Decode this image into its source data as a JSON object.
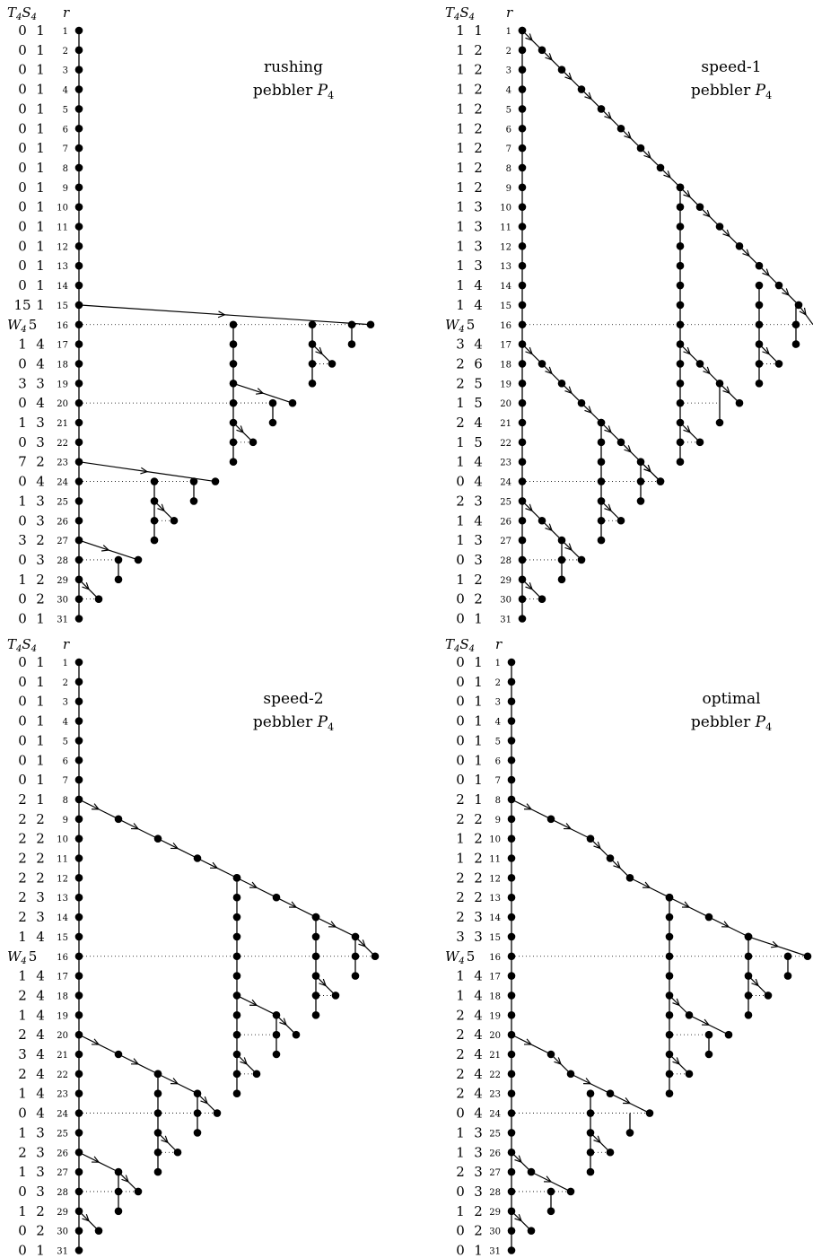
{
  "header": {
    "T": "T",
    "S": "S",
    "sub": "4",
    "r": "r"
  },
  "w_label": "W",
  "panels": [
    {
      "title_line1": "rushing",
      "title_line2": "pebbler",
      "P": "P",
      "P_sub": "4",
      "rows": [
        {
          "r": "1",
          "T": "0",
          "S": "1"
        },
        {
          "r": "2",
          "T": "0",
          "S": "1"
        },
        {
          "r": "3",
          "T": "0",
          "S": "1"
        },
        {
          "r": "4",
          "T": "0",
          "S": "1"
        },
        {
          "r": "5",
          "T": "0",
          "S": "1"
        },
        {
          "r": "6",
          "T": "0",
          "S": "1"
        },
        {
          "r": "7",
          "T": "0",
          "S": "1"
        },
        {
          "r": "8",
          "T": "0",
          "S": "1"
        },
        {
          "r": "9",
          "T": "0",
          "S": "1"
        },
        {
          "r": "10",
          "T": "0",
          "S": "1"
        },
        {
          "r": "11",
          "T": "0",
          "S": "1"
        },
        {
          "r": "12",
          "T": "0",
          "S": "1"
        },
        {
          "r": "13",
          "T": "0",
          "S": "1"
        },
        {
          "r": "14",
          "T": "0",
          "S": "1"
        },
        {
          "r": "15",
          "T": "15",
          "S": "1"
        },
        {
          "r": "16",
          "T": "W",
          "S": "5"
        },
        {
          "r": "17",
          "T": "1",
          "S": "4"
        },
        {
          "r": "18",
          "T": "0",
          "S": "4"
        },
        {
          "r": "19",
          "T": "3",
          "S": "3"
        },
        {
          "r": "20",
          "T": "0",
          "S": "4"
        },
        {
          "r": "21",
          "T": "1",
          "S": "3"
        },
        {
          "r": "22",
          "T": "0",
          "S": "3"
        },
        {
          "r": "23",
          "T": "7",
          "S": "2"
        },
        {
          "r": "24",
          "T": "0",
          "S": "4"
        },
        {
          "r": "25",
          "T": "1",
          "S": "3"
        },
        {
          "r": "26",
          "T": "0",
          "S": "3"
        },
        {
          "r": "27",
          "T": "3",
          "S": "2"
        },
        {
          "r": "28",
          "T": "0",
          "S": "3"
        },
        {
          "r": "29",
          "T": "1",
          "S": "2"
        },
        {
          "r": "30",
          "T": "0",
          "S": "2"
        },
        {
          "r": "31",
          "T": "0",
          "S": "1"
        }
      ],
      "tree": {
        "vlines": [
          [
            172,
            16,
            18
          ],
          [
            132,
            24,
            26
          ],
          [
            88,
            28,
            29
          ],
          [
            44,
            30,
            30
          ]
        ],
        "stars": [
          [
            172,
            19,
            172,
            21
          ],
          [
            132,
            27,
            132,
            29
          ]
        ],
        "sub_hlines": [
          [
            172,
            24,
            216,
            24,
            false
          ],
          [
            88,
            28,
            132,
            28,
            false
          ]
        ],
        "verts": [
          [
            172,
            22,
            216,
            22,
            true
          ],
          [
            172,
            26,
            216,
            26,
            true
          ]
        ]
      },
      "verts": [],
      "arrows": [],
      "dots": []
    }
  ]
}
